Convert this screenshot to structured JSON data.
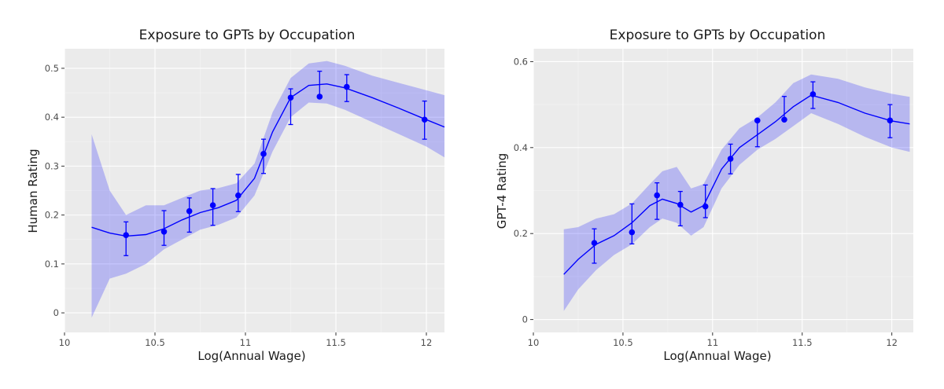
{
  "colors": {
    "series": "#0000ff",
    "panel": "#ebebeb"
  },
  "chart_data": [
    {
      "type": "scatter",
      "title": "Exposure to GPTs by Occupation",
      "xlabel": "Log(Annual Wage)",
      "ylabel": "Human Rating",
      "xlim": [
        10.0,
        12.1
      ],
      "ylim": [
        -0.04,
        0.54
      ],
      "xticks": [
        10,
        10.5,
        11,
        11.5,
        12
      ],
      "xtick_labels": [
        "10",
        "10.5",
        "11",
        "11.5",
        "12"
      ],
      "yticks": [
        0,
        0.1,
        0.2,
        0.3,
        0.4,
        0.5
      ],
      "ytick_labels": [
        "0",
        "0.1",
        "0.2",
        "0.3",
        "0.4",
        "0.5"
      ],
      "points": [
        {
          "x": 10.34,
          "y": 0.159,
          "lo": 0.117,
          "hi": 0.186
        },
        {
          "x": 10.55,
          "y": 0.166,
          "lo": 0.138,
          "hi": 0.209
        },
        {
          "x": 10.69,
          "y": 0.208,
          "lo": 0.165,
          "hi": 0.235
        },
        {
          "x": 10.82,
          "y": 0.22,
          "lo": 0.179,
          "hi": 0.254
        },
        {
          "x": 10.96,
          "y": 0.24,
          "lo": 0.207,
          "hi": 0.283
        },
        {
          "x": 11.1,
          "y": 0.325,
          "lo": 0.285,
          "hi": 0.355
        },
        {
          "x": 11.25,
          "y": 0.44,
          "lo": 0.385,
          "hi": 0.458
        },
        {
          "x": 11.41,
          "y": 0.442,
          "lo": 0.442,
          "hi": 0.494
        },
        {
          "x": 11.56,
          "y": 0.462,
          "lo": 0.432,
          "hi": 0.487
        },
        {
          "x": 11.99,
          "y": 0.395,
          "lo": 0.355,
          "hi": 0.433
        }
      ],
      "smooth": {
        "x": [
          10.15,
          10.25,
          10.34,
          10.45,
          10.55,
          10.65,
          10.75,
          10.85,
          10.95,
          11.05,
          11.15,
          11.25,
          11.35,
          11.45,
          11.55,
          11.7,
          11.85,
          12.0,
          12.1
        ],
        "y": [
          0.175,
          0.163,
          0.157,
          0.16,
          0.172,
          0.19,
          0.205,
          0.215,
          0.23,
          0.275,
          0.37,
          0.44,
          0.465,
          0.468,
          0.46,
          0.44,
          0.418,
          0.395,
          0.38
        ],
        "lo": [
          -0.01,
          0.07,
          0.08,
          0.1,
          0.13,
          0.15,
          0.17,
          0.18,
          0.195,
          0.24,
          0.33,
          0.4,
          0.43,
          0.428,
          0.415,
          0.39,
          0.365,
          0.34,
          0.318
        ],
        "hi": [
          0.365,
          0.25,
          0.2,
          0.22,
          0.22,
          0.235,
          0.25,
          0.255,
          0.265,
          0.305,
          0.41,
          0.48,
          0.51,
          0.515,
          0.505,
          0.485,
          0.47,
          0.455,
          0.445
        ]
      }
    },
    {
      "type": "scatter",
      "title": "Exposure to GPTs by Occupation",
      "xlabel": "Log(Annual Wage)",
      "ylabel": "GPT-4 Rating",
      "xlim": [
        10.0,
        12.12
      ],
      "ylim": [
        -0.03,
        0.63
      ],
      "xticks": [
        10,
        10.5,
        11,
        11.5,
        12
      ],
      "xtick_labels": [
        "10",
        "10.5",
        "11",
        "11.5",
        "12"
      ],
      "yticks": [
        0,
        0.2,
        0.4,
        0.6
      ],
      "ytick_labels": [
        "0",
        "0.2",
        "0.4",
        "0.6"
      ],
      "points": [
        {
          "x": 10.34,
          "y": 0.178,
          "lo": 0.131,
          "hi": 0.211
        },
        {
          "x": 10.55,
          "y": 0.203,
          "lo": 0.176,
          "hi": 0.269
        },
        {
          "x": 10.69,
          "y": 0.289,
          "lo": 0.233,
          "hi": 0.318
        },
        {
          "x": 10.82,
          "y": 0.267,
          "lo": 0.218,
          "hi": 0.298
        },
        {
          "x": 10.96,
          "y": 0.263,
          "lo": 0.237,
          "hi": 0.313
        },
        {
          "x": 11.1,
          "y": 0.374,
          "lo": 0.339,
          "hi": 0.408
        },
        {
          "x": 11.25,
          "y": 0.463,
          "lo": 0.402,
          "hi": 0.463
        },
        {
          "x": 11.4,
          "y": 0.465,
          "lo": 0.465,
          "hi": 0.519
        },
        {
          "x": 11.56,
          "y": 0.524,
          "lo": 0.491,
          "hi": 0.553
        },
        {
          "x": 11.99,
          "y": 0.463,
          "lo": 0.423,
          "hi": 0.5
        }
      ],
      "smooth": {
        "x": [
          10.17,
          10.25,
          10.35,
          10.45,
          10.55,
          10.65,
          10.72,
          10.8,
          10.88,
          10.95,
          11.05,
          11.15,
          11.25,
          11.35,
          11.45,
          11.55,
          11.7,
          11.85,
          12.0,
          12.1
        ],
        "y": [
          0.105,
          0.14,
          0.175,
          0.195,
          0.225,
          0.265,
          0.28,
          0.27,
          0.25,
          0.265,
          0.35,
          0.4,
          0.43,
          0.46,
          0.495,
          0.522,
          0.505,
          0.48,
          0.462,
          0.455
        ],
        "lo": [
          0.02,
          0.07,
          0.115,
          0.15,
          0.175,
          0.215,
          0.235,
          0.225,
          0.195,
          0.215,
          0.305,
          0.36,
          0.395,
          0.42,
          0.45,
          0.48,
          0.455,
          0.425,
          0.4,
          0.39
        ],
        "hi": [
          0.21,
          0.215,
          0.235,
          0.245,
          0.27,
          0.315,
          0.345,
          0.355,
          0.305,
          0.315,
          0.395,
          0.445,
          0.47,
          0.505,
          0.55,
          0.57,
          0.56,
          0.54,
          0.525,
          0.518
        ]
      }
    }
  ]
}
